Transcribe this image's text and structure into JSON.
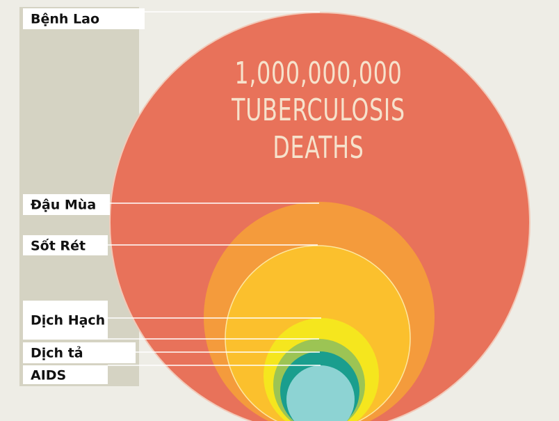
{
  "labels": [
    "Bệnh Lao",
    "Đậu Mùa",
    "Sốt Rét",
    "Dịch Hạch",
    "Dịch tả",
    "AIDS"
  ],
  "headline": [
    "1,000,000,000",
    "TUBERCULOSIS",
    "DEATHS"
  ]
}
